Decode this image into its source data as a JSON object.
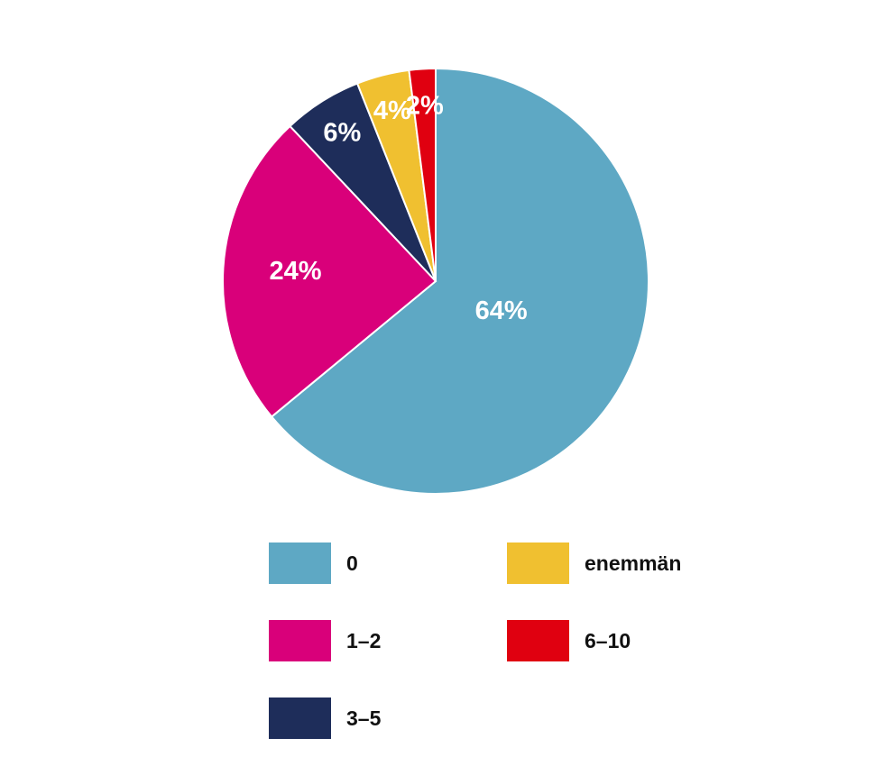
{
  "chart_data": {
    "type": "pie",
    "categories": [
      "0",
      "1–2",
      "3–5",
      "enemmän",
      "6–10"
    ],
    "values": [
      64,
      24,
      6,
      4,
      2
    ],
    "value_labels": [
      "64%",
      "24%",
      "6%",
      "4%",
      "2%"
    ],
    "colors": [
      "#5ea8c4",
      "#d9007a",
      "#1e2d5a",
      "#f0c030",
      "#e00010"
    ]
  }
}
